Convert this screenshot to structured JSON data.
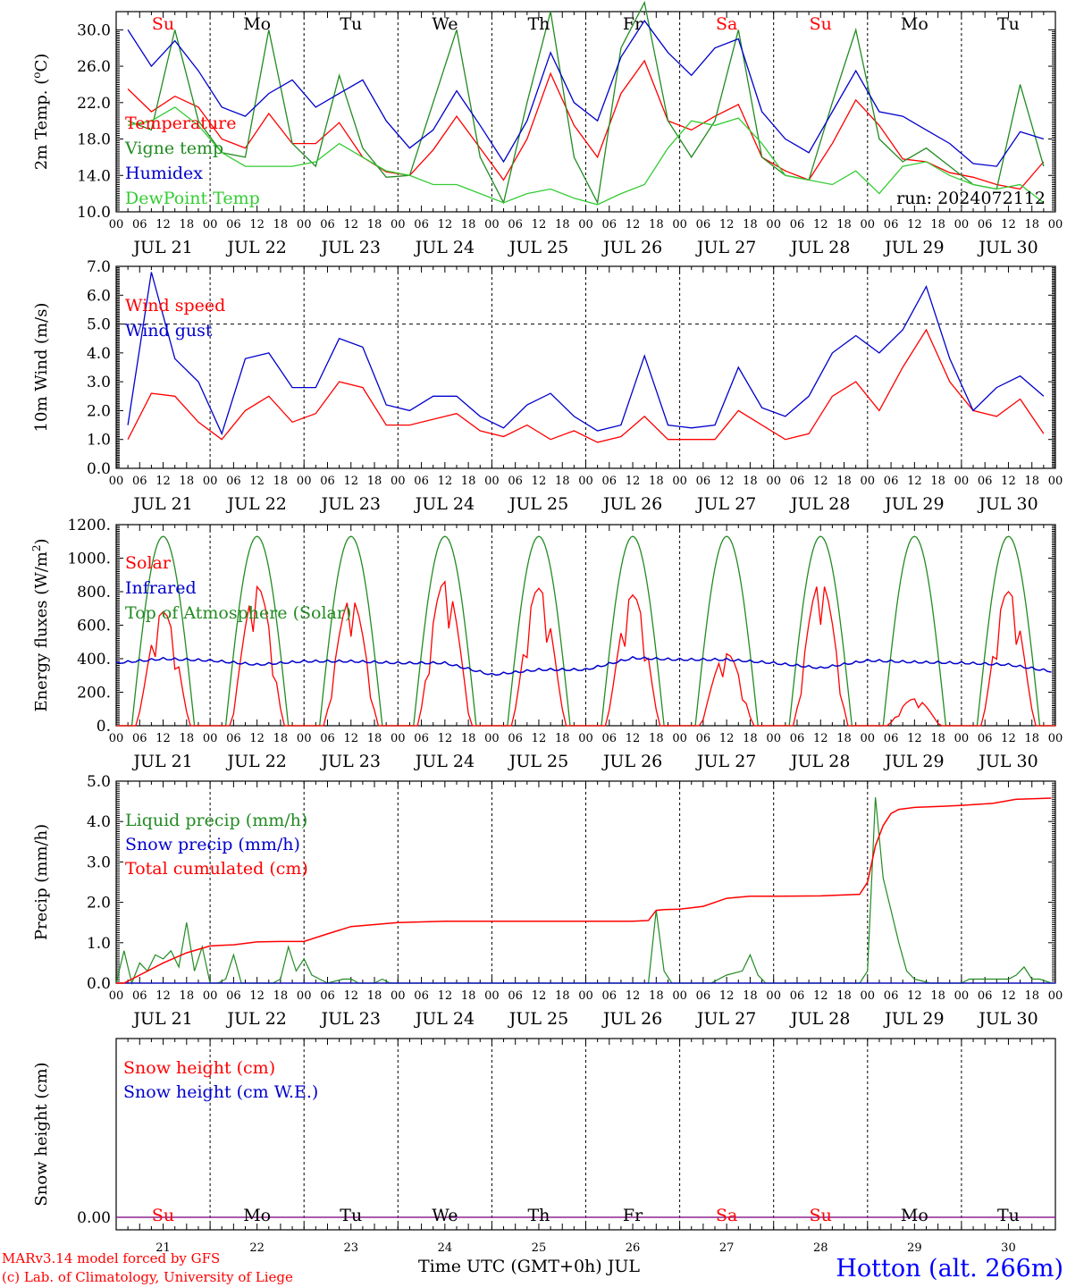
{
  "chart_data": [
    {
      "type": "line",
      "ylabel": "2m Temp. (oC)",
      "ylim": [
        10,
        32
      ],
      "yticks": [
        "10.0",
        "14.0",
        "18.0",
        "22.0",
        "26.0",
        "30.0"
      ],
      "x_hours": [
        0,
        6,
        12,
        18,
        24,
        30,
        36,
        42,
        48,
        54,
        60,
        66,
        72,
        78,
        84,
        90,
        96,
        102,
        108,
        114,
        120,
        126,
        132,
        138,
        144,
        150,
        156,
        162,
        168,
        174,
        180,
        186,
        192,
        198,
        204,
        210,
        216,
        222,
        228,
        234
      ],
      "series": [
        {
          "name": "Temperature",
          "color": "#ff0000",
          "values": [
            23.5,
            21.0,
            22.7,
            21.5,
            18.0,
            17.0,
            20.8,
            17.5,
            17.5,
            19.8,
            16.0,
            14.4,
            14.0,
            16.8,
            20.5,
            17.0,
            13.5,
            18.0,
            25.2,
            19.5,
            16.0,
            23.0,
            26.6,
            20.0,
            19.0,
            20.5,
            21.8,
            16.0,
            14.5,
            13.5,
            17.5,
            22.3,
            19.5,
            15.8,
            15.5,
            14.3,
            13.8,
            13.0,
            12.5,
            15.5
          ]
        },
        {
          "name": "Vigne temp",
          "color": "#228b22",
          "values": [
            20.0,
            19.0,
            30.0,
            20.0,
            16.5,
            16.0,
            30.0,
            17.5,
            15.0,
            25.0,
            17.0,
            13.8,
            14.0,
            22.0,
            30.0,
            16.0,
            11.0,
            22.0,
            32.0,
            16.0,
            11.0,
            28.0,
            33.0,
            20.0,
            16.0,
            20.0,
            30.0,
            16.0,
            14.0,
            13.5,
            22.0,
            30.0,
            18.0,
            15.5,
            17.0,
            15.0,
            13.0,
            12.5,
            24.0,
            15.0
          ]
        },
        {
          "name": "Humidex",
          "color": "#0000cc",
          "values": [
            30.0,
            26.0,
            28.8,
            25.5,
            21.5,
            20.5,
            23.0,
            24.5,
            21.5,
            23.0,
            24.5,
            20.0,
            17.0,
            19.0,
            23.3,
            19.5,
            15.5,
            20.0,
            27.5,
            22.0,
            20.0,
            27.0,
            31.0,
            27.5,
            25.0,
            28.0,
            29.0,
            21.0,
            18.0,
            16.5,
            21.0,
            25.5,
            21.0,
            20.5,
            19.0,
            17.5,
            15.3,
            15.0,
            18.8,
            18.0
          ]
        },
        {
          "name": "DewPoint Temp",
          "color": "#33cc33",
          "values": [
            19.5,
            20.0,
            21.5,
            19.5,
            16.5,
            15.0,
            15.0,
            15.0,
            15.5,
            17.5,
            16.0,
            14.5,
            14.0,
            13.0,
            13.0,
            12.0,
            11.0,
            12.0,
            12.5,
            11.5,
            10.8,
            12.0,
            13.0,
            17.0,
            20.0,
            19.5,
            20.3,
            17.5,
            14.0,
            13.5,
            13.0,
            14.5,
            12.0,
            15.0,
            15.5,
            14.0,
            13.0,
            12.5,
            13.0,
            11.0
          ]
        }
      ]
    },
    {
      "type": "line",
      "ylabel": "10m Wind (m/s)",
      "ylim": [
        0,
        7
      ],
      "yticks": [
        "0.0",
        "1.0",
        "2.0",
        "3.0",
        "4.0",
        "5.0",
        "6.0",
        "7.0"
      ],
      "x_hours": [
        0,
        6,
        12,
        18,
        24,
        30,
        36,
        42,
        48,
        54,
        60,
        66,
        72,
        78,
        84,
        90,
        96,
        102,
        108,
        114,
        120,
        126,
        132,
        138,
        144,
        150,
        156,
        162,
        168,
        174,
        180,
        186,
        192,
        198,
        204,
        210,
        216,
        222,
        228,
        234
      ],
      "series": [
        {
          "name": "Wind speed",
          "color": "#ff0000",
          "values": [
            1.0,
            2.6,
            2.5,
            1.6,
            1.0,
            2.0,
            2.5,
            1.6,
            1.9,
            3.0,
            2.8,
            1.5,
            1.5,
            1.7,
            1.9,
            1.3,
            1.1,
            1.5,
            1.0,
            1.3,
            0.9,
            1.1,
            1.8,
            1.0,
            1.0,
            1.0,
            2.0,
            1.5,
            1.0,
            1.2,
            2.5,
            3.0,
            2.0,
            3.5,
            4.8,
            3.0,
            2.0,
            1.8,
            2.4,
            1.2
          ]
        },
        {
          "name": "Wind gust",
          "color": "#0000cc",
          "values": [
            1.5,
            6.8,
            3.8,
            3.0,
            1.2,
            3.8,
            4.0,
            2.8,
            2.8,
            4.5,
            4.2,
            2.2,
            2.0,
            2.5,
            2.5,
            1.8,
            1.4,
            2.2,
            2.6,
            1.8,
            1.3,
            1.5,
            3.9,
            1.5,
            1.4,
            1.5,
            3.5,
            2.1,
            1.8,
            2.5,
            4.0,
            4.6,
            4.0,
            4.8,
            6.3,
            3.8,
            2.0,
            2.8,
            3.2,
            2.5
          ]
        }
      ]
    },
    {
      "type": "line",
      "ylabel": "Energy fluxes (W/m2)",
      "ylim": [
        0,
        1200
      ],
      "yticks": [
        "0.",
        "200.",
        "400.",
        "600.",
        "800.",
        "1000.",
        "1200."
      ],
      "series": [
        {
          "name": "Solar",
          "color": "#ff0000",
          "day_peaks": [
            680,
            830,
            760,
            860,
            820,
            780,
            430,
            860,
            160,
            800
          ]
        },
        {
          "name": "Infrared",
          "color": "#0000cc",
          "x_hours": [
            0,
            12,
            24,
            36,
            48,
            60,
            72,
            84,
            96,
            108,
            120,
            132,
            144,
            156,
            168,
            180,
            192,
            204,
            216,
            228,
            239
          ],
          "values": [
            370,
            395,
            385,
            360,
            380,
            380,
            370,
            370,
            300,
            330,
            330,
            400,
            390,
            390,
            370,
            340,
            385,
            375,
            370,
            360,
            320
          ]
        },
        {
          "name": "Top of Atmosphere (Solar)",
          "color": "#228b22",
          "daily_peak": 1130,
          "sunrise_hour": 4,
          "sunset_hour": 20
        }
      ]
    },
    {
      "type": "line",
      "ylabel": "Precip (mm/h)",
      "ylim": [
        0,
        5
      ],
      "yticks": [
        "0.0",
        "1.0",
        "2.0",
        "3.0",
        "4.0",
        "5.0"
      ],
      "series": [
        {
          "name": "Liquid precip (mm/h)",
          "color": "#228b22",
          "x_hours": [
            0,
            2,
            4,
            6,
            8,
            10,
            12,
            14,
            16,
            18,
            20,
            22,
            24,
            26,
            28,
            30,
            32,
            36,
            38,
            40,
            42,
            44,
            46,
            48,
            50,
            52,
            54,
            58,
            60,
            62,
            64,
            66,
            68,
            70,
            72,
            120,
            136,
            138,
            140,
            142,
            144,
            152,
            156,
            160,
            162,
            164,
            166,
            168,
            190,
            192,
            194,
            196,
            198,
            200,
            202,
            204,
            208,
            212,
            216,
            218,
            228,
            230,
            232,
            234,
            236,
            239
          ],
          "values": [
            0,
            0.8,
            0,
            0.5,
            0.3,
            0.7,
            0.6,
            0.8,
            0.4,
            1.5,
            0.3,
            0.9,
            0,
            0,
            0.1,
            0.7,
            0,
            0,
            0,
            0,
            0.1,
            0.9,
            0.3,
            0.6,
            0.2,
            0.1,
            0,
            0.1,
            0.1,
            0,
            0,
            0,
            0.1,
            0,
            0,
            0,
            0,
            1.8,
            0.3,
            0,
            0,
            0,
            0.2,
            0.3,
            0.7,
            0.2,
            0,
            0,
            0,
            0.3,
            4.6,
            2.6,
            1.8,
            1.0,
            0.3,
            0.1,
            0,
            0,
            0,
            0.1,
            0.1,
            0.2,
            0.4,
            0.1,
            0.1,
            0
          ]
        },
        {
          "name": "Snow precip (mm/h)",
          "color": "#0000cc",
          "values": [
            0
          ]
        },
        {
          "name": "Total cumulated (cm)",
          "color": "#ff0000",
          "x_hours": [
            0,
            2,
            6,
            12,
            18,
            24,
            30,
            36,
            42,
            48,
            54,
            60,
            66,
            72,
            84,
            96,
            108,
            120,
            132,
            136,
            138,
            140,
            144,
            150,
            156,
            162,
            168,
            180,
            190,
            192,
            194,
            196,
            198,
            200,
            204,
            212,
            216,
            224,
            230,
            239
          ],
          "values": [
            0,
            0,
            0.2,
            0.5,
            0.75,
            0.92,
            0.95,
            1.02,
            1.03,
            1.03,
            1.22,
            1.4,
            1.45,
            1.5,
            1.53,
            1.53,
            1.53,
            1.53,
            1.53,
            1.55,
            1.8,
            1.82,
            1.83,
            1.9,
            2.1,
            2.15,
            2.15,
            2.16,
            2.2,
            2.5,
            3.4,
            3.9,
            4.2,
            4.3,
            4.35,
            4.38,
            4.4,
            4.45,
            4.55,
            4.58
          ]
        }
      ]
    },
    {
      "type": "line",
      "ylabel": "Snow height (cm)",
      "yticks": [
        "0.00"
      ],
      "series": [
        {
          "name": "Snow height (cm)",
          "color": "#ff0000",
          "values": [
            0.0
          ]
        },
        {
          "name": "Snow height (cm W.E.)",
          "color": "#0000cc",
          "values": [
            0.0
          ]
        }
      ]
    }
  ],
  "hour_ticks": [
    "00",
    "06",
    "12",
    "18"
  ],
  "end_tick": "00",
  "day_labels": [
    "JUL 21",
    "JUL 22",
    "JUL 23",
    "JUL 24",
    "JUL 25",
    "JUL 26",
    "JUL 27",
    "JUL 28",
    "JUL 29",
    "JUL 30"
  ],
  "weekdays": [
    "Su",
    "Mo",
    "Tu",
    "We",
    "Th",
    "Fr",
    "Sa",
    "Su",
    "Mo",
    "Tu"
  ],
  "weekday_colors": [
    "#ff0000",
    "#000000",
    "#000000",
    "#000000",
    "#000000",
    "#000000",
    "#ff0000",
    "#ff0000",
    "#000000",
    "#000000"
  ],
  "day_numbers": [
    "21",
    "22",
    "23",
    "24",
    "25",
    "26",
    "27",
    "28",
    "29",
    "30"
  ],
  "run_label": "run: 2024072112",
  "xlabel": "Time UTC (GMT+0h) JUL",
  "credit1": "MARv3.14 model forced by GFS",
  "credit2": "(c) Lab. of Climatology, University of Liege",
  "station": "Hotton (alt. 266m)"
}
